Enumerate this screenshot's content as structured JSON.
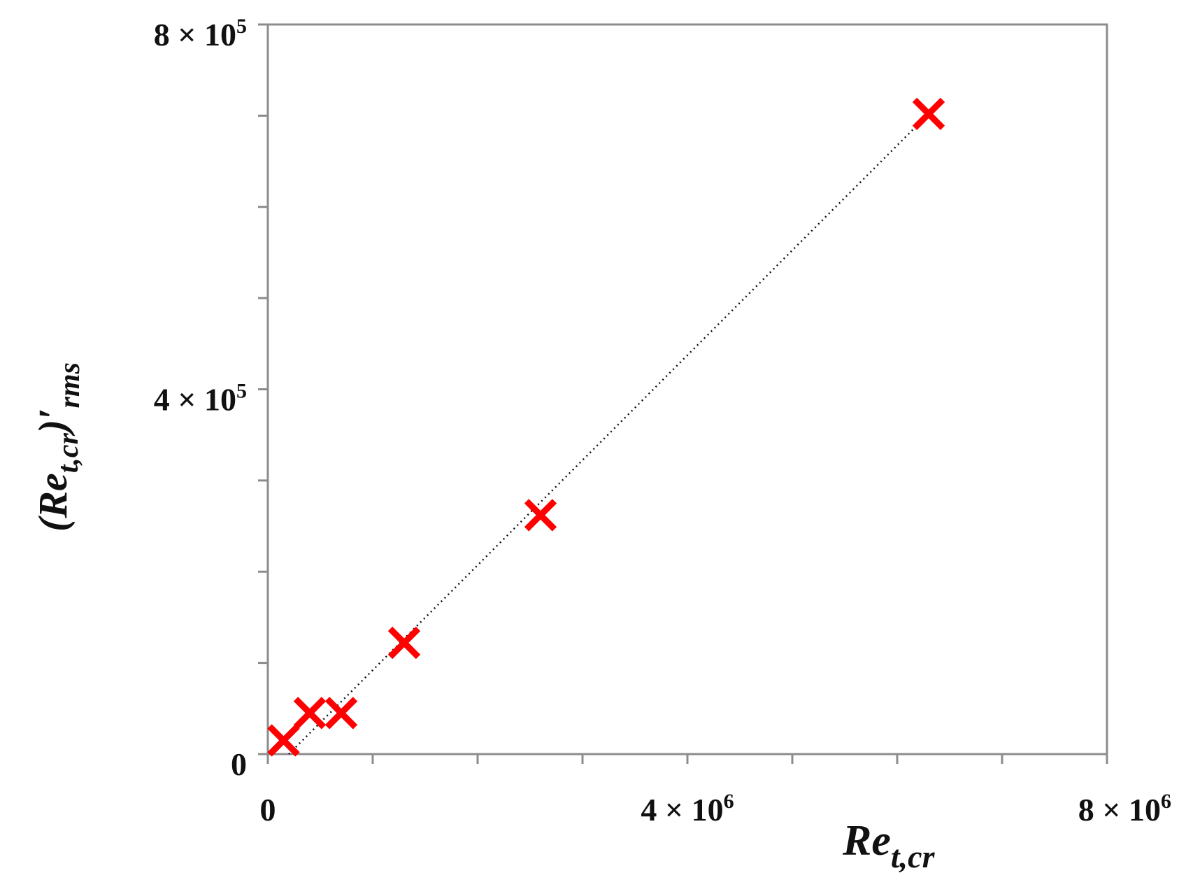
{
  "chart_data": {
    "type": "scatter",
    "title": "",
    "xlabel": {
      "base": "Re",
      "sub": "t,cr"
    },
    "ylabel": {
      "open": "(",
      "base": "Re",
      "sub": "t,cr",
      "close": ")′",
      "sub2": "rms"
    },
    "xlim": [
      0,
      8000000
    ],
    "ylim": [
      0,
      800000
    ],
    "x_ticks": [
      {
        "value": 0,
        "label": "0"
      },
      {
        "value": 4000000,
        "label": "4 × 10",
        "exp": "6"
      },
      {
        "value": 8000000,
        "label": "8 × 10",
        "exp": "6"
      }
    ],
    "y_ticks": [
      {
        "value": 0,
        "label": "0"
      },
      {
        "value": 400000,
        "label": "4 × 10",
        "exp": "5"
      },
      {
        "value": 800000,
        "label": "8 × 10",
        "exp": "5"
      }
    ],
    "x_minor_step": 1000000,
    "y_minor_step": 100000,
    "grid": false,
    "legend": "none",
    "marker_color": "#ff0000",
    "trendline_color": "#111111",
    "series": [
      {
        "marker": "x",
        "x": [
          150000,
          400000,
          700000,
          1300000,
          2600000,
          6300000
        ],
        "y": [
          15000,
          45000,
          45000,
          122000,
          262000,
          702000
        ]
      }
    ],
    "trendline": {
      "x": [
        200000,
        6300000
      ],
      "y": [
        0,
        702000
      ],
      "style": "dotted"
    }
  }
}
